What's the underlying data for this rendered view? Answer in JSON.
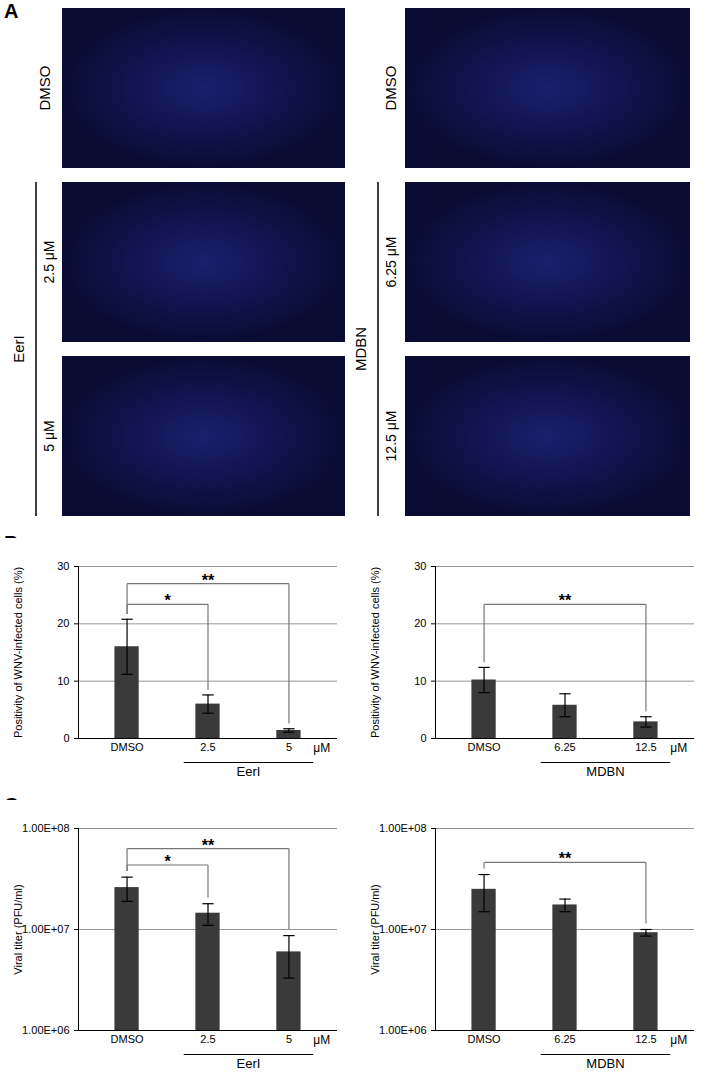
{
  "figure": {
    "panel_labels": [
      "A",
      "B",
      "C"
    ],
    "images": {
      "columns": [
        {
          "control": "DMSO",
          "treatment": "EerI",
          "doses": [
            "2.5 μM",
            "5 μM"
          ]
        },
        {
          "control": "DMSO",
          "treatment": "MDBN",
          "doses": [
            "6.25 μM",
            "12.5 μM"
          ]
        }
      ]
    }
  },
  "chart_data": [
    {
      "type": "bar",
      "y_label": "Positivity of WNV-infected cells (%)",
      "categories": [
        "DMSO",
        "2.5",
        "5"
      ],
      "values": [
        16,
        6,
        1.4
      ],
      "error": [
        4.8,
        1.6,
        0.3
      ],
      "color": "#3a3a3a",
      "ylim": [
        0,
        30
      ],
      "yticks": [
        0,
        10,
        20,
        30
      ],
      "grid": true,
      "x_unit": "μM",
      "x_group": {
        "label": "EerI",
        "categories": [
          "2.5",
          "5"
        ]
      },
      "annotations": [
        {
          "text": "*",
          "from": "DMSO",
          "to": "2.5"
        },
        {
          "text": "**",
          "from": "DMSO",
          "to": "5"
        }
      ]
    },
    {
      "type": "bar",
      "y_label": "Positivity of WNV-infected cells (%)",
      "categories": [
        "DMSO",
        "6.25",
        "12.5"
      ],
      "values": [
        10.2,
        5.8,
        2.9
      ],
      "error": [
        2.2,
        2.0,
        0.9
      ],
      "color": "#3a3a3a",
      "ylim": [
        0,
        30
      ],
      "yticks": [
        0,
        10,
        20,
        30
      ],
      "grid": true,
      "x_unit": "μM",
      "x_group": {
        "label": "MDBN",
        "categories": [
          "6.25",
          "12.5"
        ]
      },
      "annotations": [
        {
          "text": "**",
          "from": "DMSO",
          "to": "12.5"
        }
      ]
    },
    {
      "type": "bar",
      "y_label": "Viral titer (PFU/ml)",
      "log": "y",
      "categories": [
        "DMSO",
        "2.5",
        "5"
      ],
      "values": [
        26000000,
        14500000,
        6000000
      ],
      "error": [
        7000000,
        3500000,
        2700000
      ],
      "color": "#3a3a3a",
      "ylim": [
        1000000,
        100000000
      ],
      "yticks": [
        {
          "value": 1000000,
          "label": "1.00E+06"
        },
        {
          "value": 10000000,
          "label": "1.00E+07"
        },
        {
          "value": 100000000,
          "label": "1.00E+08"
        }
      ],
      "grid": true,
      "x_unit": "μM",
      "x_group": {
        "label": "EerI",
        "categories": [
          "2.5",
          "5"
        ]
      },
      "annotations": [
        {
          "text": "*",
          "from": "DMSO",
          "to": "2.5"
        },
        {
          "text": "**",
          "from": "DMSO",
          "to": "5"
        }
      ]
    },
    {
      "type": "bar",
      "y_label": "Viral titer (PFU/ml)",
      "log": "y",
      "categories": [
        "DMSO",
        "6.25",
        "12.5"
      ],
      "values": [
        25000000,
        17500000,
        9300000
      ],
      "error": [
        10000000,
        2500000,
        700000
      ],
      "color": "#3a3a3a",
      "ylim": [
        1000000,
        100000000
      ],
      "yticks": [
        {
          "value": 1000000,
          "label": "1.00E+06"
        },
        {
          "value": 10000000,
          "label": "1.00E+07"
        },
        {
          "value": 100000000,
          "label": "1.00E+08"
        }
      ],
      "grid": true,
      "x_unit": "μM",
      "x_group": {
        "label": "MDBN",
        "categories": [
          "6.25",
          "12.5"
        ]
      },
      "annotations": [
        {
          "text": "**",
          "from": "DMSO",
          "to": "12.5"
        }
      ]
    }
  ]
}
